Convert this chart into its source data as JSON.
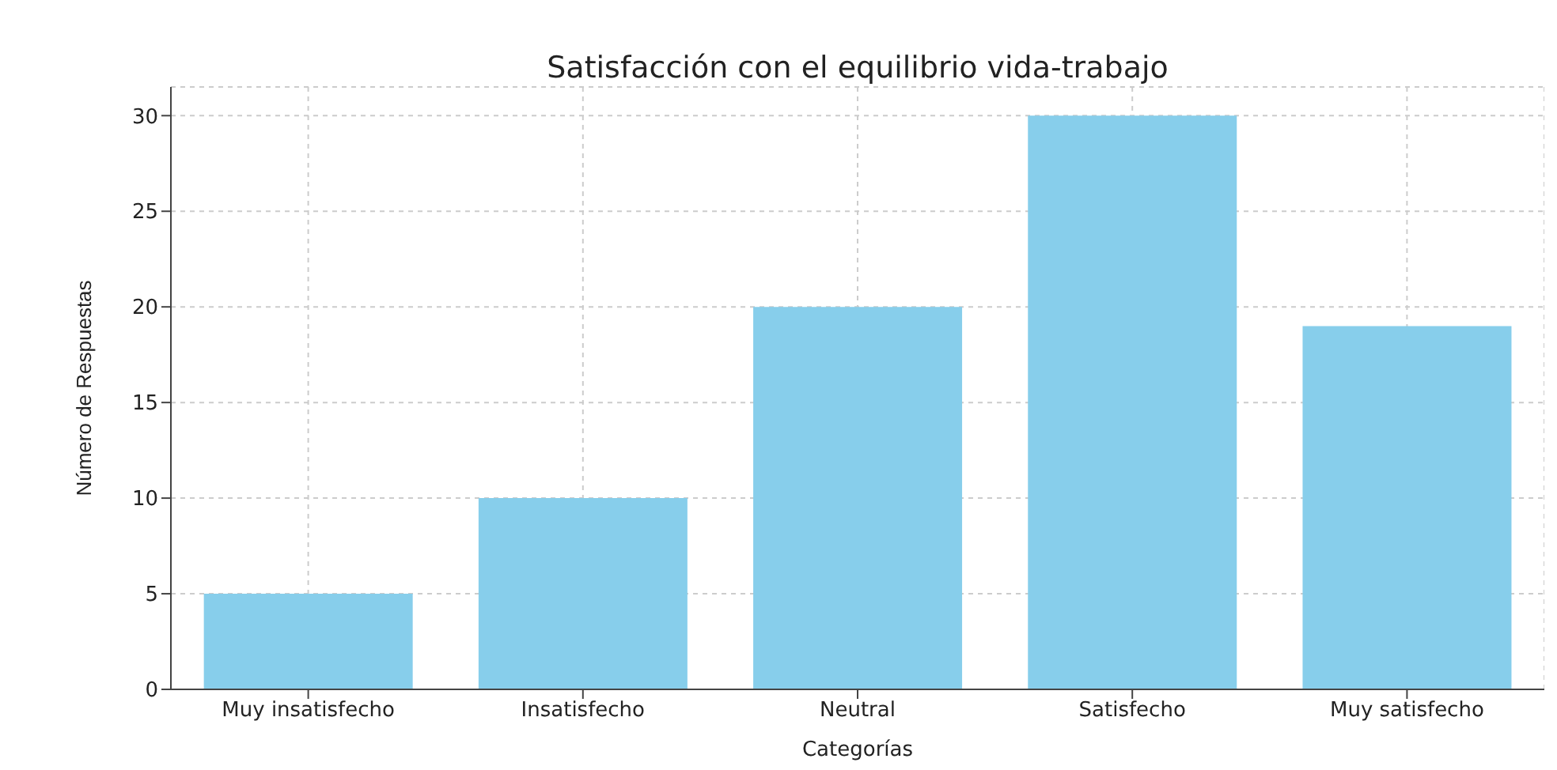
{
  "chart_data": {
    "type": "bar",
    "title": "Satisfacción con el equilibrio vida-trabajo",
    "xlabel": "Categorías",
    "ylabel": "Número de Respuestas",
    "categories": [
      "Muy insatisfecho",
      "Insatisfecho",
      "Neutral",
      "Satisfecho",
      "Muy satisfecho"
    ],
    "values": [
      5,
      10,
      20,
      30,
      19
    ],
    "color": "#87ceeb",
    "ylim": [
      0,
      31.5
    ],
    "yticks": [
      0,
      5,
      10,
      15,
      20,
      25,
      30
    ],
    "grid": true
  }
}
